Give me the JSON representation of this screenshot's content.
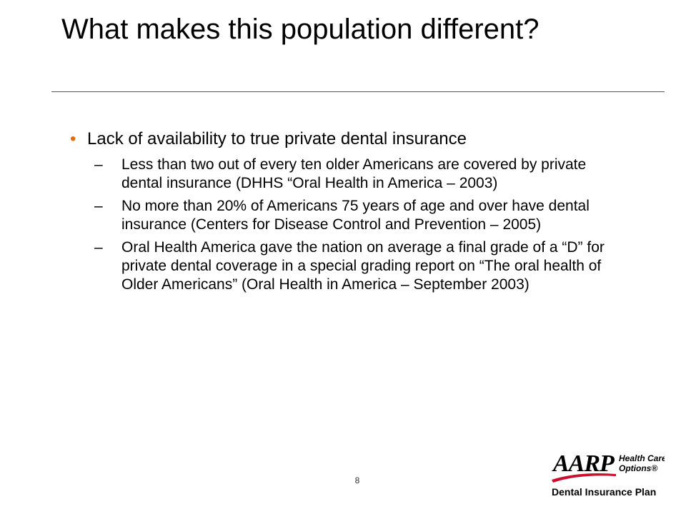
{
  "slide": {
    "title": "What makes this population different?",
    "page_number": "8"
  },
  "bullets": [
    {
      "text": "Lack of availability to true private dental insurance",
      "sub_items": [
        "Less than two out of every ten older Americans are covered by private dental insurance (DHHS “Oral Health in America – 2003)",
        "No more than 20% of Americans 75 years of age and over have dental insurance (Centers for Disease Control and Prevention – 2005)",
        "Oral Health America gave the nation on average a final grade of a “D” for private dental coverage in a special grading report on “The oral health of Older Americans” (Oral Health in America – September 2003)"
      ]
    }
  ],
  "bullet_symbol": "•",
  "sub_bullet_symbol": "–",
  "logo": {
    "brand": "AARP",
    "line1": "Health Care",
    "line2": "Options®",
    "line3": "Dental Insurance Plan",
    "accent_color": "#c8102e",
    "text_color": "#000000"
  },
  "colors": {
    "bullet": "#e36c0a",
    "text": "#000000",
    "rule": "#555555"
  }
}
